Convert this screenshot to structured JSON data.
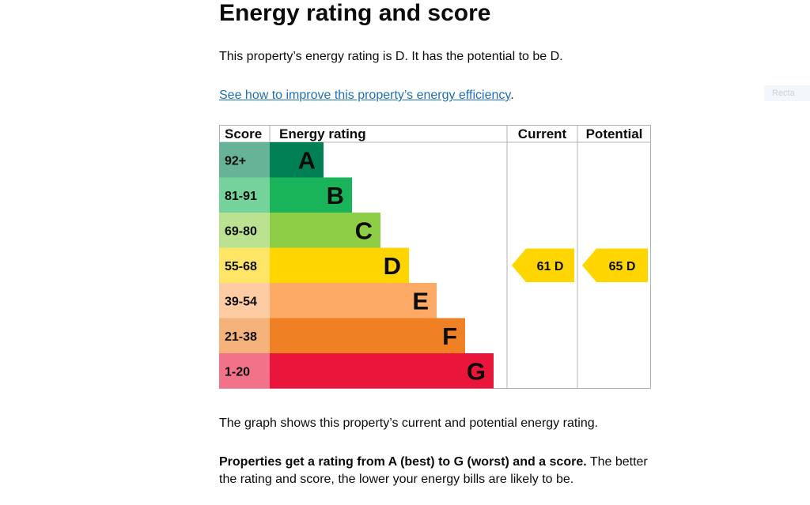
{
  "heading": "Energy rating and score",
  "intro": "This property’s energy rating is D. It has the potential to be D.",
  "improve_link": "See how to improve this property’s energy efficiency",
  "improve_link_suffix": ".",
  "ghost_button": "Recta",
  "chart_data": {
    "type": "table",
    "headers": [
      "Score",
      "Energy rating",
      "Current",
      "Potential"
    ],
    "bands": [
      {
        "score": "92+",
        "letter": "A",
        "color": "#008054",
        "score_bg": "#66b398"
      },
      {
        "score": "81-91",
        "letter": "B",
        "color": "#19b459",
        "score_bg": "#75d29b"
      },
      {
        "score": "69-80",
        "letter": "C",
        "color": "#8dce46",
        "score_bg": "#bbe290"
      },
      {
        "score": "55-68",
        "letter": "D",
        "color": "#ffd500",
        "score_bg": "#ffe566"
      },
      {
        "score": "39-54",
        "letter": "E",
        "color": "#fcaa65",
        "score_bg": "#fdcca3"
      },
      {
        "score": "21-38",
        "letter": "F",
        "color": "#ef8023",
        "score_bg": "#f5b37b"
      },
      {
        "score": "1-20",
        "letter": "G",
        "color": "#e9153b",
        "score_bg": "#f27389"
      }
    ],
    "current": {
      "score": 61,
      "band": "D",
      "label": "61  D"
    },
    "potential": {
      "score": 65,
      "band": "D",
      "label": "65  D"
    }
  },
  "caption": "The graph shows this property’s current and potential energy rating.",
  "explain_bold": "Properties get a rating from A (best) to G (worst) and a score.",
  "explain_rest": " The better the rating and score, the lower your energy bills are likely to be."
}
